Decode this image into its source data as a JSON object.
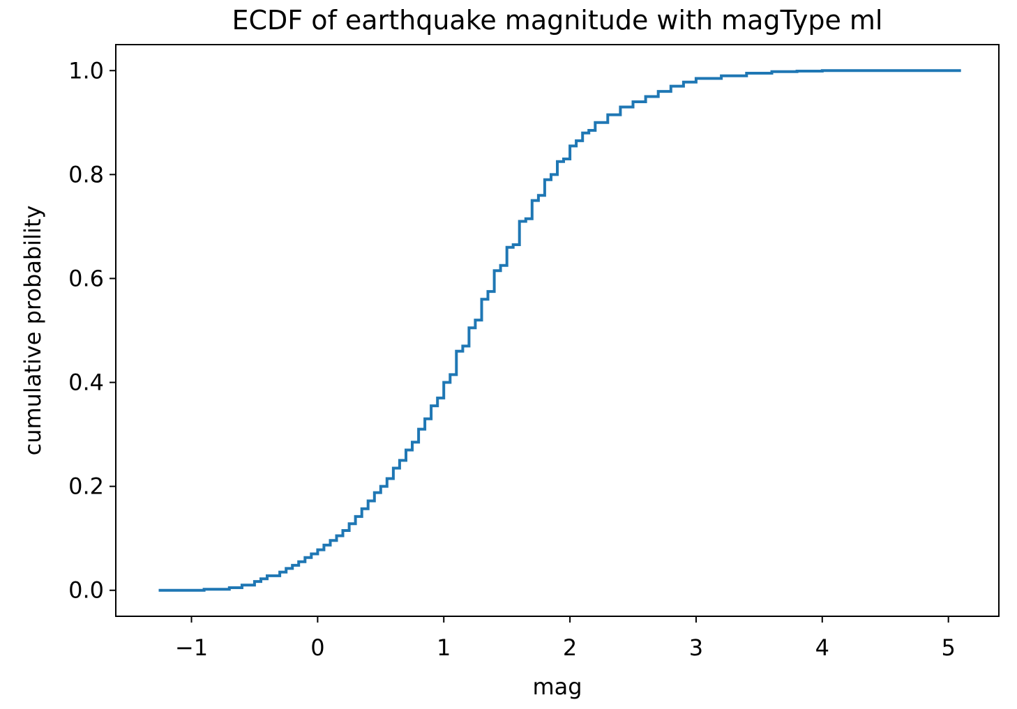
{
  "chart_data": {
    "type": "line",
    "drawstyle": "steps-post",
    "title": "ECDF of earthquake magnitude with magType ml",
    "xlabel": "mag",
    "ylabel": "cumulative probability",
    "xlim": [
      -1.6,
      5.4
    ],
    "ylim": [
      -0.05,
      1.05
    ],
    "xticks": [
      -1,
      0,
      1,
      2,
      3,
      4,
      5
    ],
    "xtick_labels": [
      "−1",
      "0",
      "1",
      "2",
      "3",
      "4",
      "5"
    ],
    "yticks": [
      0.0,
      0.2,
      0.4,
      0.6,
      0.8,
      1.0
    ],
    "ytick_labels": [
      "0.0",
      "0.2",
      "0.4",
      "0.6",
      "0.8",
      "1.0"
    ],
    "grid": false,
    "legend": false,
    "line_color": "#1f77b4",
    "series": [
      {
        "x": [
          -1.26,
          -0.9,
          -0.7,
          -0.6,
          -0.5,
          -0.45,
          -0.4,
          -0.3,
          -0.25,
          -0.2,
          -0.15,
          -0.1,
          -0.05,
          0.0,
          0.05,
          0.1,
          0.15,
          0.2,
          0.25,
          0.3,
          0.35,
          0.4,
          0.45,
          0.5,
          0.55,
          0.6,
          0.65,
          0.7,
          0.75,
          0.8,
          0.85,
          0.9,
          0.95,
          1.0,
          1.05,
          1.1,
          1.15,
          1.2,
          1.25,
          1.3,
          1.35,
          1.4,
          1.45,
          1.5,
          1.55,
          1.6,
          1.65,
          1.7,
          1.75,
          1.8,
          1.85,
          1.9,
          1.95,
          2.0,
          2.05,
          2.1,
          2.15,
          2.2,
          2.3,
          2.4,
          2.5,
          2.6,
          2.7,
          2.8,
          2.9,
          3.0,
          3.2,
          3.4,
          3.6,
          3.8,
          4.0,
          4.4,
          5.1
        ],
        "y": [
          0.0,
          0.002,
          0.005,
          0.01,
          0.017,
          0.022,
          0.028,
          0.035,
          0.042,
          0.048,
          0.055,
          0.063,
          0.07,
          0.078,
          0.087,
          0.096,
          0.105,
          0.115,
          0.128,
          0.142,
          0.157,
          0.172,
          0.188,
          0.2,
          0.215,
          0.235,
          0.25,
          0.27,
          0.285,
          0.31,
          0.33,
          0.355,
          0.37,
          0.4,
          0.415,
          0.46,
          0.47,
          0.505,
          0.52,
          0.56,
          0.575,
          0.615,
          0.625,
          0.66,
          0.665,
          0.71,
          0.715,
          0.75,
          0.76,
          0.79,
          0.8,
          0.825,
          0.83,
          0.855,
          0.865,
          0.88,
          0.885,
          0.9,
          0.915,
          0.93,
          0.94,
          0.95,
          0.96,
          0.97,
          0.978,
          0.985,
          0.99,
          0.995,
          0.998,
          0.999,
          1.0,
          1.0,
          1.0
        ]
      }
    ]
  }
}
